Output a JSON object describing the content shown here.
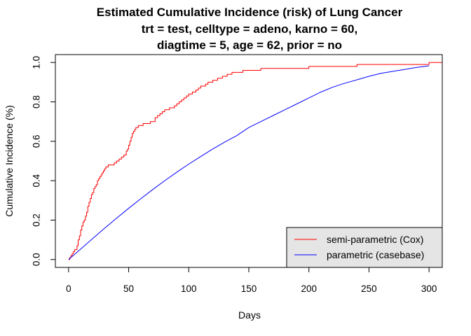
{
  "chart_data": {
    "type": "line",
    "title": [
      "Estimated Cumulative Incidence (risk) of Lung Cancer",
      "trt = test, celltype = adeno, karno = 60,",
      "diagtime = 5, age = 62, prior = no"
    ],
    "xlabel": "Days",
    "ylabel": "Cumulative Incidence (%)",
    "xlim": [
      -11,
      311
    ],
    "ylim": [
      -0.04,
      1.04
    ],
    "xticks": [
      0,
      50,
      100,
      150,
      200,
      250,
      300
    ],
    "yticks": [
      0.0,
      0.2,
      0.4,
      0.6,
      0.8,
      1.0
    ],
    "xtick_labels": [
      "0",
      "50",
      "100",
      "150",
      "200",
      "250",
      "300"
    ],
    "ytick_labels": [
      "0.0",
      "0.2",
      "0.4",
      "0.6",
      "0.8",
      "1.0"
    ],
    "grid": false,
    "legend": {
      "position": "bottom-right",
      "background": "#e5e5e5",
      "entries": [
        {
          "label": "semi-parametric (Cox)",
          "color": "#ff0000"
        },
        {
          "label": "parametric (casebase)",
          "color": "#0000ff"
        }
      ]
    },
    "series": [
      {
        "name": "semi-parametric (Cox)",
        "color": "#ff0000",
        "step": true,
        "x": [
          0,
          1,
          2,
          3,
          4,
          5,
          6,
          7,
          8,
          9,
          10,
          11,
          12,
          13,
          14,
          15,
          16,
          17,
          18,
          19,
          20,
          21,
          22,
          23,
          24,
          25,
          26,
          27,
          28,
          29,
          30,
          31,
          32,
          33,
          34,
          36,
          38,
          40,
          42,
          44,
          46,
          47,
          48,
          49,
          50,
          51,
          52,
          53,
          54,
          55,
          56,
          58,
          60,
          62,
          64,
          66,
          68,
          70,
          72,
          74,
          76,
          78,
          80,
          82,
          84,
          86,
          88,
          90,
          92,
          94,
          96,
          98,
          100,
          103,
          106,
          108,
          110,
          112,
          114,
          116,
          118,
          120,
          124,
          128,
          132,
          136,
          140,
          145,
          150,
          155,
          160,
          170,
          180,
          200,
          220,
          240,
          260,
          280,
          300,
          311
        ],
        "y": [
          0.0,
          0.01,
          0.02,
          0.03,
          0.04,
          0.05,
          0.05,
          0.07,
          0.1,
          0.12,
          0.15,
          0.17,
          0.19,
          0.2,
          0.22,
          0.24,
          0.27,
          0.29,
          0.31,
          0.33,
          0.34,
          0.36,
          0.37,
          0.38,
          0.4,
          0.41,
          0.42,
          0.43,
          0.44,
          0.45,
          0.46,
          0.47,
          0.47,
          0.48,
          0.48,
          0.48,
          0.49,
          0.5,
          0.51,
          0.52,
          0.53,
          0.53,
          0.55,
          0.56,
          0.58,
          0.6,
          0.62,
          0.64,
          0.65,
          0.66,
          0.67,
          0.68,
          0.68,
          0.69,
          0.69,
          0.69,
          0.7,
          0.7,
          0.72,
          0.73,
          0.74,
          0.75,
          0.76,
          0.76,
          0.77,
          0.77,
          0.78,
          0.79,
          0.8,
          0.81,
          0.82,
          0.83,
          0.84,
          0.85,
          0.86,
          0.87,
          0.88,
          0.88,
          0.89,
          0.9,
          0.9,
          0.91,
          0.92,
          0.93,
          0.94,
          0.95,
          0.95,
          0.96,
          0.96,
          0.96,
          0.97,
          0.97,
          0.97,
          0.98,
          0.98,
          0.99,
          0.99,
          0.99,
          1.0,
          1.0
        ]
      },
      {
        "name": "parametric (casebase)",
        "color": "#0000ff",
        "step": false,
        "x": [
          0,
          10,
          20,
          30,
          40,
          50,
          60,
          70,
          80,
          90,
          100,
          110,
          120,
          130,
          140,
          150,
          160,
          170,
          180,
          190,
          200,
          210,
          220,
          230,
          240,
          250,
          260,
          270,
          280,
          290,
          300
        ],
        "y": [
          0.0,
          0.053,
          0.106,
          0.159,
          0.21,
          0.26,
          0.308,
          0.355,
          0.4,
          0.443,
          0.484,
          0.523,
          0.561,
          0.596,
          0.629,
          0.67,
          0.7,
          0.73,
          0.76,
          0.79,
          0.82,
          0.85,
          0.875,
          0.895,
          0.912,
          0.93,
          0.945,
          0.955,
          0.965,
          0.975,
          0.983
        ]
      }
    ]
  }
}
